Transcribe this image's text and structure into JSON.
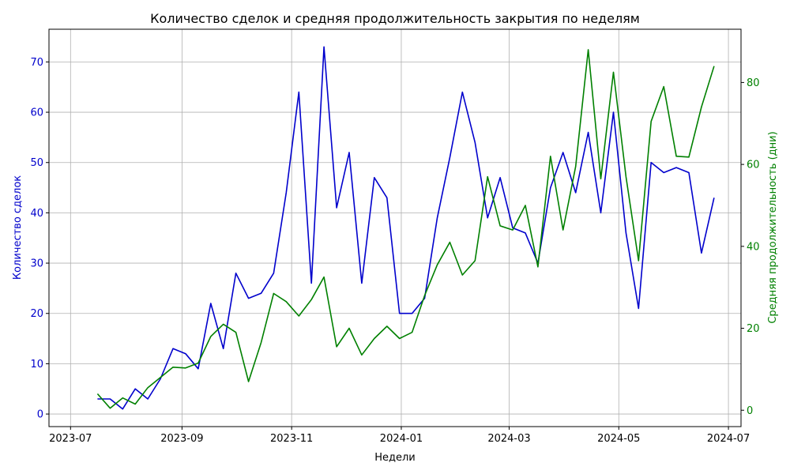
{
  "chart_data": {
    "type": "line",
    "title": "Количество сделок и средняя продолжительность закрытия по неделям",
    "xlabel": "Недели",
    "ylabel_left": "Количество сделок",
    "ylabel_right": "Средняя продолжительность (дни)",
    "x_tick_labels": [
      "2023-07",
      "2023-09",
      "2023-11",
      "2024-01",
      "2024-03",
      "2024-05",
      "2024-07"
    ],
    "x_ticks": [
      "2023-07-01",
      "2023-09-01",
      "2023-11-01",
      "2024-01-01",
      "2024-03-01",
      "2024-05-01",
      "2024-07-01"
    ],
    "xlim": [
      "2023-06-19",
      "2024-07-08"
    ],
    "ylim_left": [
      -2.5,
      76.5
    ],
    "ylim_right": [
      -4,
      93
    ],
    "yticks_left": [
      0,
      10,
      20,
      30,
      40,
      50,
      60,
      70
    ],
    "yticks_right": [
      0,
      20,
      40,
      60,
      80
    ],
    "grid": true,
    "colors": {
      "left": "#0000cc",
      "right": "#008000",
      "grid": "#b0b0b0"
    },
    "x": [
      "2023-07-16",
      "2023-07-23",
      "2023-07-30",
      "2023-08-06",
      "2023-08-13",
      "2023-08-20",
      "2023-08-27",
      "2023-09-03",
      "2023-09-10",
      "2023-09-17",
      "2023-09-24",
      "2023-10-01",
      "2023-10-08",
      "2023-10-15",
      "2023-10-22",
      "2023-10-29",
      "2023-11-05",
      "2023-11-12",
      "2023-11-19",
      "2023-11-26",
      "2023-12-03",
      "2023-12-10",
      "2023-12-17",
      "2023-12-24",
      "2023-12-31",
      "2024-01-07",
      "2024-01-14",
      "2024-01-21",
      "2024-01-28",
      "2024-02-04",
      "2024-02-11",
      "2024-02-18",
      "2024-02-25",
      "2024-03-03",
      "2024-03-10",
      "2024-03-17",
      "2024-03-24",
      "2024-03-31",
      "2024-04-07",
      "2024-04-14",
      "2024-04-21",
      "2024-04-28",
      "2024-05-05",
      "2024-05-12",
      "2024-05-19",
      "2024-05-26",
      "2024-06-02",
      "2024-06-09",
      "2024-06-16",
      "2024-06-23"
    ],
    "series": [
      {
        "axis": "left",
        "color": "#0000cc",
        "values": [
          3,
          3,
          1,
          5,
          3,
          7,
          13,
          12,
          9,
          22,
          13,
          28,
          23,
          24,
          28,
          44,
          64,
          26,
          73,
          41,
          52,
          26,
          47,
          43,
          20,
          20,
          23,
          39,
          51,
          64,
          54,
          39,
          47,
          37,
          36,
          30,
          45,
          52,
          44,
          56,
          40,
          60,
          36,
          21,
          50,
          48,
          49,
          48,
          32,
          43
        ]
      },
      {
        "axis": "right",
        "color": "#008000",
        "values": [
          4,
          0.5,
          3,
          1.5,
          5.5,
          8,
          10.5,
          10.3,
          11.5,
          18,
          21,
          19,
          7,
          16.5,
          28.5,
          26.5,
          23,
          27,
          32.5,
          15.5,
          20,
          13.5,
          17.5,
          20.5,
          17.5,
          19,
          28,
          35.5,
          41,
          33,
          36.5,
          57,
          45,
          44,
          50,
          35,
          62,
          44,
          59.5,
          88,
          56.5,
          82.5,
          57,
          36.5,
          70.5,
          79,
          62,
          61.8,
          74,
          84
        ]
      }
    ]
  }
}
